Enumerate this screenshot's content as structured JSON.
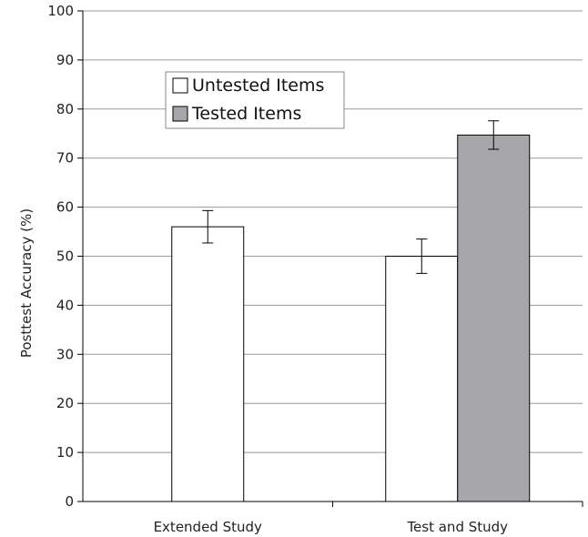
{
  "chart_data": {
    "type": "bar",
    "title": "",
    "xlabel": "",
    "ylabel": "Posttest Accuracy (%)",
    "ylim": [
      0,
      100
    ],
    "yticks": [
      0,
      10,
      20,
      30,
      40,
      50,
      60,
      70,
      80,
      90,
      100
    ],
    "grid": true,
    "categories": [
      "Extended Study",
      "Test and Study"
    ],
    "series": [
      {
        "name": "Untested Items",
        "color": "#ffffff",
        "values": [
          56,
          50
        ],
        "errors": [
          3.3,
          3.5
        ]
      },
      {
        "name": "Tested Items",
        "color": "#a7a7ab",
        "values": [
          null,
          74.7
        ],
        "errors": [
          null,
          2.9
        ]
      }
    ],
    "legend": {
      "position": "top-left",
      "items": [
        "Untested Items",
        "Tested Items"
      ]
    }
  }
}
